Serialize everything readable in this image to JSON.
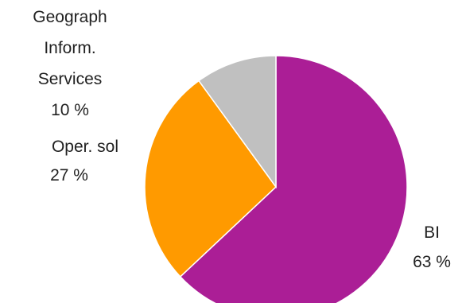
{
  "chart_data": {
    "type": "pie",
    "title": "",
    "slices": [
      {
        "label": "BI",
        "value": 63,
        "value_label": "63 %",
        "color": "#ab1e96"
      },
      {
        "label": "Oper. sol",
        "value": 27,
        "value_label": "27 %",
        "color": "#ff9a00"
      },
      {
        "label": "Geograph Inform. Services",
        "label_lines": [
          "Geograph",
          "Inform.",
          "Services"
        ],
        "value": 10,
        "value_label": "10 %",
        "color": "#c0c0c0"
      }
    ],
    "start_angle_deg": 0,
    "direction": "clockwise",
    "legend": "none",
    "slice_border_color": "#ffffff"
  }
}
